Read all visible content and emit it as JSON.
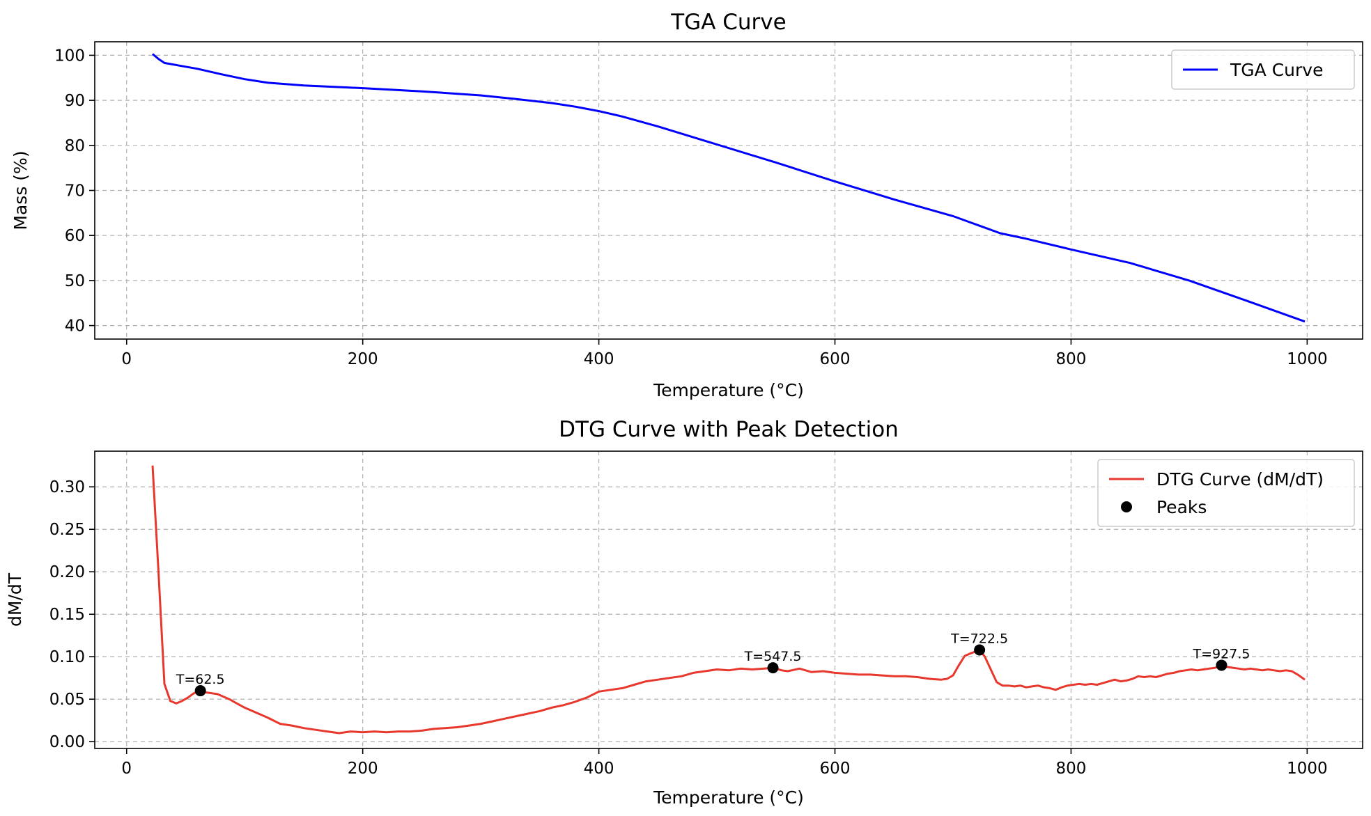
{
  "chart_data": [
    {
      "type": "line",
      "title": "TGA Curve",
      "xlabel": "Temperature (°C)",
      "ylabel": "Mass (%)",
      "xlim": [
        -27,
        1047
      ],
      "ylim": [
        37,
        103
      ],
      "xticks": [
        0,
        200,
        400,
        600,
        800,
        1000
      ],
      "yticks": [
        40,
        50,
        60,
        70,
        80,
        90,
        100
      ],
      "grid": true,
      "legend_position": "upper-right",
      "series": [
        {
          "name": "TGA Curve",
          "color": "#0000ff",
          "x": [
            22,
            27,
            32,
            45,
            60,
            80,
            100,
            120,
            150,
            200,
            250,
            300,
            330,
            360,
            380,
            400,
            420,
            450,
            500,
            550,
            600,
            650,
            700,
            720,
            740,
            760,
            800,
            850,
            900,
            950,
            998
          ],
          "y": [
            100.3,
            99.2,
            98.3,
            97.7,
            97.0,
            95.8,
            94.7,
            93.9,
            93.3,
            92.7,
            92.0,
            91.1,
            90.3,
            89.4,
            88.6,
            87.6,
            86.4,
            84.2,
            80.2,
            76.2,
            72.0,
            68.0,
            64.3,
            62.4,
            60.5,
            59.4,
            56.9,
            53.9,
            50.0,
            45.4,
            40.9
          ]
        }
      ]
    },
    {
      "type": "line",
      "title": "DTG Curve with Peak Detection",
      "xlabel": "Temperature (°C)",
      "ylabel": "dM/dT",
      "xlim": [
        -27,
        1047
      ],
      "ylim": [
        -0.008,
        0.342
      ],
      "xticks": [
        0,
        200,
        400,
        600,
        800,
        1000
      ],
      "yticks": [
        0.0,
        0.05,
        0.1,
        0.15,
        0.2,
        0.25,
        0.3
      ],
      "grid": true,
      "legend_position": "upper-right",
      "series": [
        {
          "name": "DTG Curve (dM/dT)",
          "color": "#e8372c",
          "x": [
            22,
            27,
            32,
            37,
            42,
            47,
            52,
            57,
            62,
            67,
            72,
            77,
            82,
            87,
            92,
            100,
            110,
            120,
            130,
            140,
            150,
            160,
            170,
            180,
            190,
            200,
            210,
            220,
            230,
            240,
            250,
            260,
            270,
            280,
            290,
            300,
            310,
            320,
            330,
            340,
            350,
            360,
            370,
            380,
            390,
            400,
            410,
            420,
            430,
            440,
            450,
            460,
            470,
            480,
            490,
            500,
            510,
            520,
            530,
            540,
            547.5,
            555,
            560,
            570,
            580,
            590,
            600,
            610,
            620,
            630,
            640,
            650,
            660,
            670,
            680,
            690,
            695,
            700,
            705,
            710,
            715,
            722.5,
            727,
            732,
            737,
            742,
            747,
            752,
            757,
            762,
            767,
            772,
            777,
            782,
            787,
            792,
            797,
            802,
            807,
            812,
            817,
            822,
            827,
            832,
            837,
            842,
            847,
            852,
            857,
            862,
            867,
            872,
            877,
            882,
            887,
            892,
            897,
            902,
            907,
            912,
            917,
            922,
            927.5,
            932,
            937,
            942,
            947,
            952,
            957,
            962,
            967,
            972,
            977,
            982,
            987,
            992,
            998
          ],
          "y": [
            0.325,
            0.2,
            0.068,
            0.048,
            0.045,
            0.048,
            0.052,
            0.057,
            0.06,
            0.058,
            0.057,
            0.056,
            0.053,
            0.05,
            0.046,
            0.04,
            0.034,
            0.028,
            0.021,
            0.019,
            0.016,
            0.014,
            0.012,
            0.01,
            0.012,
            0.011,
            0.012,
            0.011,
            0.012,
            0.012,
            0.013,
            0.015,
            0.016,
            0.017,
            0.019,
            0.021,
            0.024,
            0.027,
            0.03,
            0.033,
            0.036,
            0.04,
            0.043,
            0.047,
            0.052,
            0.059,
            0.061,
            0.063,
            0.067,
            0.071,
            0.073,
            0.075,
            0.077,
            0.081,
            0.083,
            0.085,
            0.084,
            0.086,
            0.085,
            0.086,
            0.087,
            0.084,
            0.083,
            0.086,
            0.082,
            0.083,
            0.081,
            0.08,
            0.079,
            0.079,
            0.078,
            0.077,
            0.077,
            0.076,
            0.074,
            0.073,
            0.074,
            0.078,
            0.09,
            0.101,
            0.104,
            0.108,
            0.1,
            0.085,
            0.07,
            0.066,
            0.066,
            0.065,
            0.066,
            0.064,
            0.065,
            0.066,
            0.064,
            0.063,
            0.061,
            0.064,
            0.066,
            0.067,
            0.068,
            0.067,
            0.068,
            0.067,
            0.069,
            0.071,
            0.073,
            0.071,
            0.072,
            0.074,
            0.077,
            0.076,
            0.077,
            0.076,
            0.078,
            0.08,
            0.081,
            0.083,
            0.084,
            0.085,
            0.084,
            0.085,
            0.086,
            0.087,
            0.09,
            0.088,
            0.087,
            0.086,
            0.085,
            0.086,
            0.085,
            0.084,
            0.085,
            0.084,
            0.083,
            0.084,
            0.083,
            0.079,
            0.073
          ]
        },
        {
          "name": "Peaks",
          "color": "#000000",
          "marker": "circle",
          "x": [
            62.5,
            547.5,
            722.5,
            927.5
          ],
          "y": [
            0.06,
            0.087,
            0.108,
            0.09
          ]
        }
      ],
      "annotations": [
        "T=62.5",
        "T=547.5",
        "T=722.5",
        "T=927.5"
      ]
    }
  ]
}
